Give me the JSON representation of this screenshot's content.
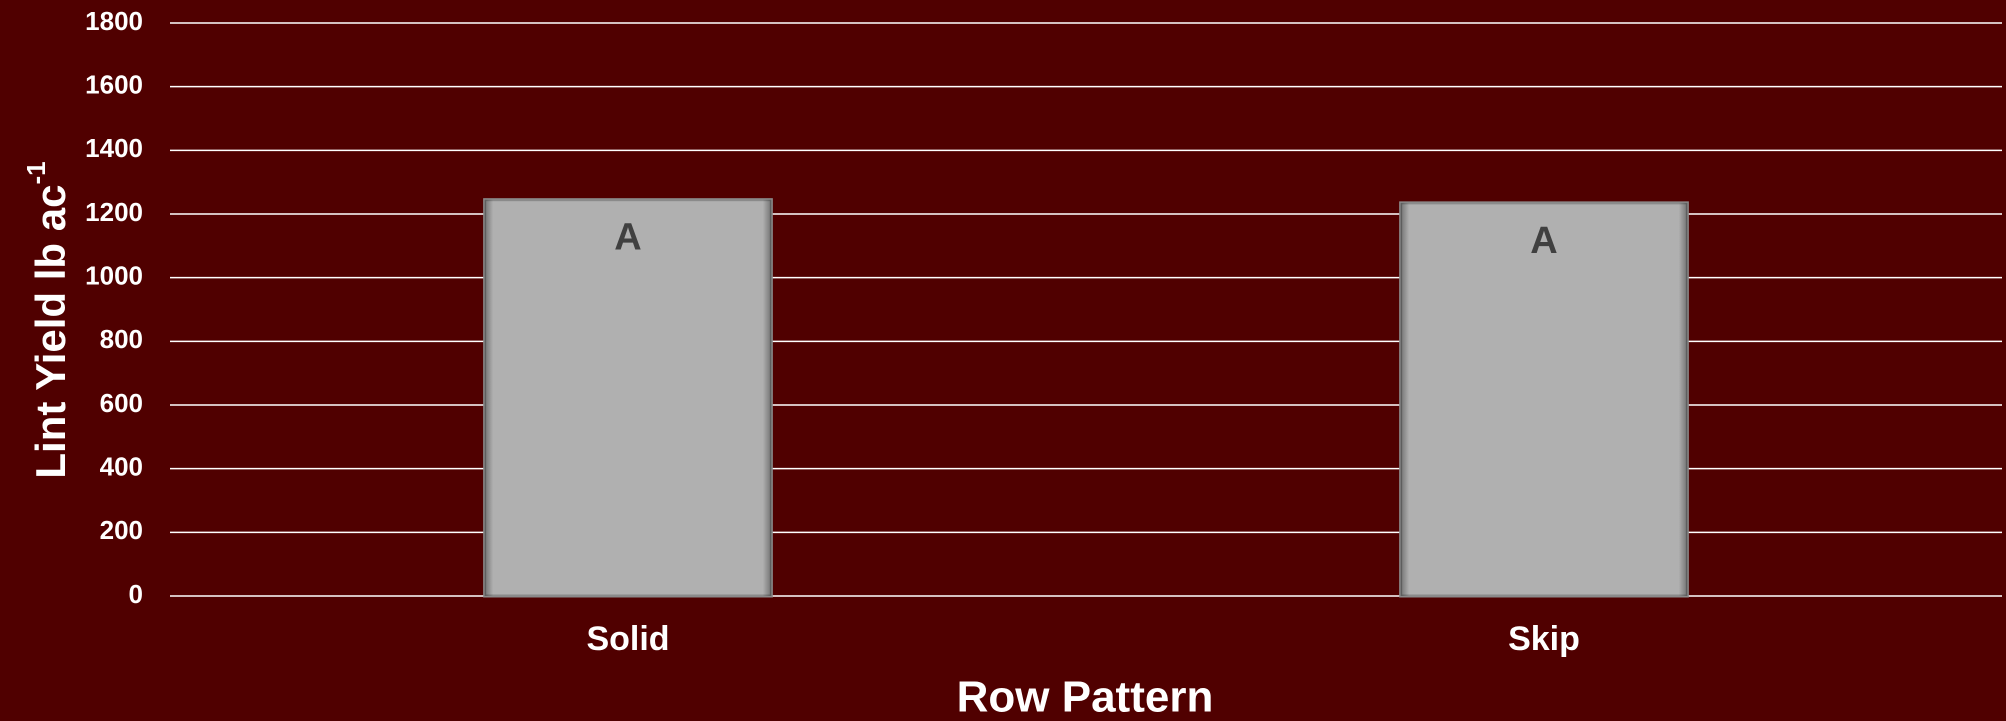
{
  "chart_data": {
    "type": "bar",
    "xlabel": "Row Pattern",
    "ylabel": {
      "text": "Lint Yield lb ac",
      "superscript": "-1"
    },
    "categories": [
      "Solid",
      "Skip"
    ],
    "values": [
      1245,
      1235
    ],
    "bar_labels": [
      "A",
      "A"
    ],
    "color": "#b0b0b0",
    "ylim": [
      0,
      1800
    ],
    "yticks": [
      0,
      200,
      400,
      600,
      800,
      1000,
      1200,
      1400,
      1600,
      1800
    ],
    "grid": true
  }
}
